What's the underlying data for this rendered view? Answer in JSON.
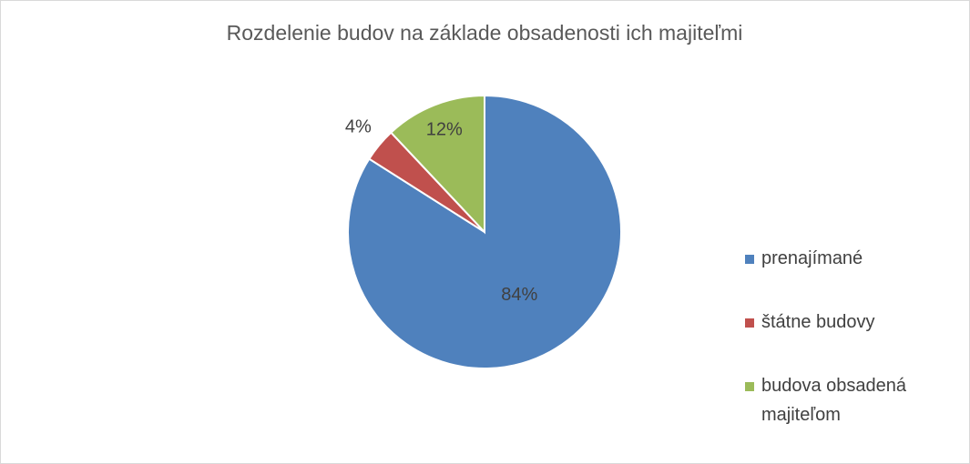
{
  "chart_data": {
    "type": "pie",
    "title": "Rozdelenie budov na základe obsadenosti ich majiteľmi",
    "categories": [
      "prenajímané",
      "štátne budovy",
      "budova obsadená majiteľom"
    ],
    "values": [
      84,
      4,
      12
    ],
    "value_labels": [
      "84%",
      "4%",
      "12%"
    ],
    "colors": [
      "#4f81bd",
      "#c0504d",
      "#9bbb59"
    ],
    "legend": "right"
  }
}
